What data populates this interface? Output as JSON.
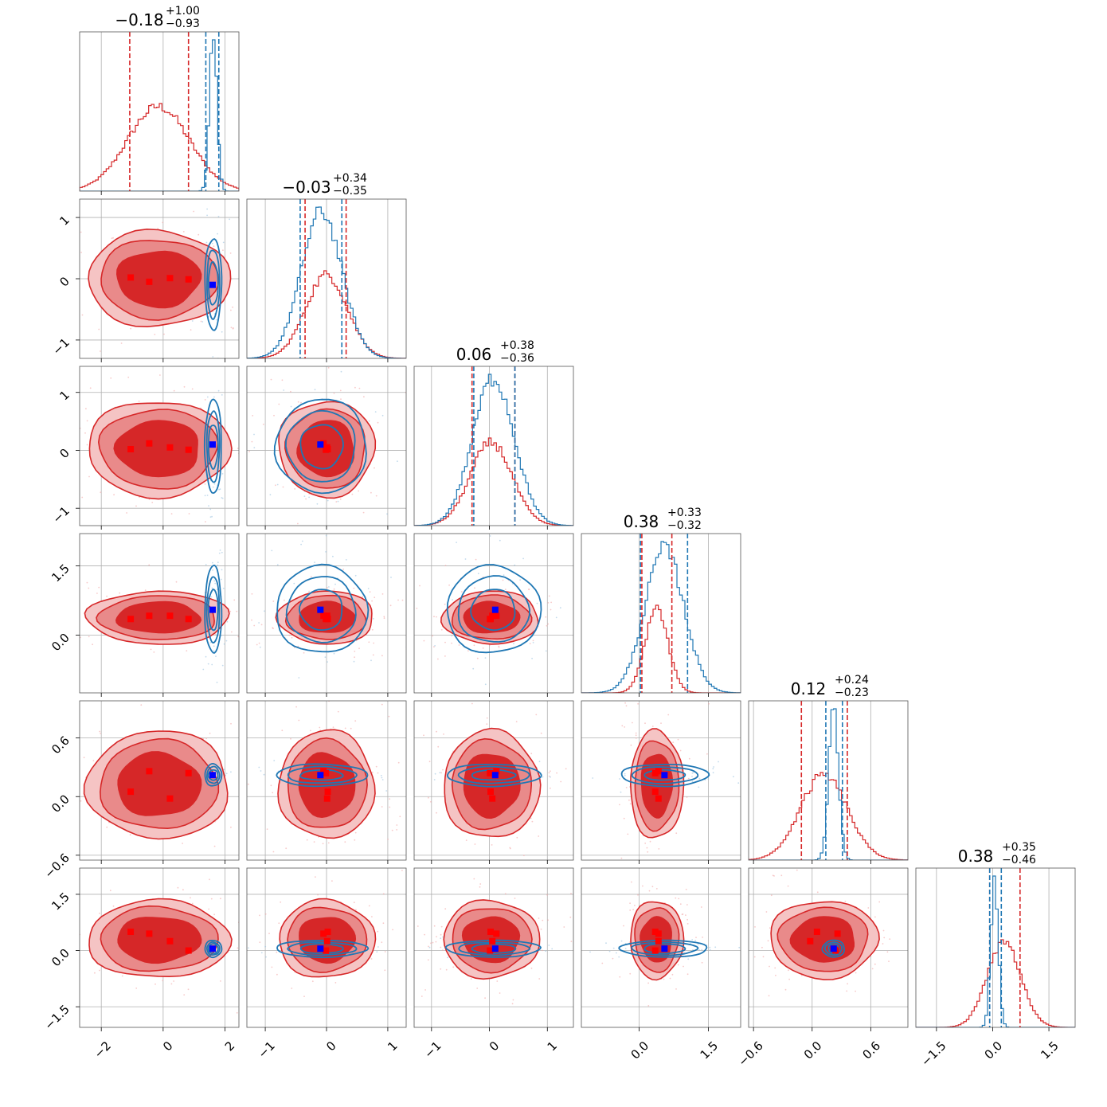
{
  "chart_data": {
    "type": "corner",
    "n_params": 6,
    "series": [
      {
        "name": "",
        "color": "#d62728"
      },
      {
        "name": "",
        "color": "#1f77b4"
      }
    ],
    "marker_color_red": "#ff0000",
    "marker_color_blue": "#0000ff",
    "params": [
      {
        "title_main": "−0.18",
        "title_plus": "+1.00",
        "title_minus": "−0.93",
        "range": [
          -2.7,
          2.45
        ],
        "ticks": [
          -2,
          0,
          2
        ],
        "tick_labels": [
          "−2",
          "0",
          "2"
        ]
      },
      {
        "title_main": "−0.03",
        "title_plus": "+0.34",
        "title_minus": "−0.35",
        "range": [
          -1.3,
          1.3
        ],
        "ticks": [
          -1,
          0,
          1
        ],
        "tick_labels": [
          "−1",
          "0",
          "1"
        ]
      },
      {
        "title_main": "0.06",
        "title_plus": "+0.38",
        "title_minus": "−0.36",
        "range": [
          -1.3,
          1.45
        ],
        "ticks": [
          -1,
          0,
          1
        ],
        "tick_labels": [
          "−1",
          "0",
          "1"
        ]
      },
      {
        "title_main": "0.38",
        "title_plus": "+0.33",
        "title_minus": "−0.32",
        "range": [
          -1.25,
          2.2
        ],
        "ticks": [
          0.0,
          1.5
        ],
        "tick_labels": [
          "0.0",
          "1.5"
        ]
      },
      {
        "title_main": "0.12",
        "title_plus": "+0.24",
        "title_minus": "−0.23",
        "range": [
          -0.65,
          0.98
        ],
        "ticks": [
          -0.6,
          0.0,
          0.6
        ],
        "tick_labels": [
          "−0.6",
          "0.0",
          "0.6"
        ]
      },
      {
        "title_main": "0.38",
        "title_plus": "+0.35",
        "title_minus": "−0.46",
        "range": [
          -2.05,
          2.2
        ],
        "ticks": [
          -1.5,
          0.0,
          1.5
        ],
        "tick_labels": [
          "−1.5",
          "0.0",
          "1.5"
        ]
      }
    ],
    "red_means": [
      -0.15,
      0.0,
      0.03,
      0.38,
      0.12,
      0.3
    ],
    "red_sds": [
      1.0,
      0.34,
      0.36,
      0.25,
      0.24,
      0.45
    ],
    "blue_means": [
      1.62,
      -0.08,
      0.07,
      0.55,
      0.22,
      0.05
    ],
    "blue_sds": [
      0.12,
      0.33,
      0.36,
      0.42,
      0.05,
      0.1
    ],
    "red_quantile_lines": [
      [
        -1.08,
        0.82
      ],
      [
        -0.35,
        0.32
      ],
      [
        -0.3,
        0.44
      ],
      [
        0.06,
        0.71
      ],
      [
        -0.11,
        0.36
      ],
      [
        -0.08,
        0.73
      ]
    ],
    "blue_quantile_lines": [
      [
        1.38,
        1.8
      ],
      [
        -0.43,
        0.25
      ],
      [
        -0.27,
        0.44
      ],
      [
        0.03,
        1.05
      ],
      [
        0.14,
        0.31
      ],
      [
        -0.08,
        0.23
      ]
    ],
    "red_points": [
      [
        -1.05,
        0.02,
        0.02,
        0.35,
        0.05,
        0.5
      ],
      [
        -0.45,
        -0.05,
        0.12,
        0.42,
        0.26,
        0.45
      ],
      [
        0.22,
        0.01,
        0.05,
        0.42,
        -0.02,
        0.25
      ],
      [
        0.82,
        -0.01,
        0.01,
        0.35,
        0.24,
        0.0
      ]
    ],
    "blue_point": [
      1.6,
      -0.1,
      0.1,
      0.55,
      0.22,
      0.05
    ]
  }
}
